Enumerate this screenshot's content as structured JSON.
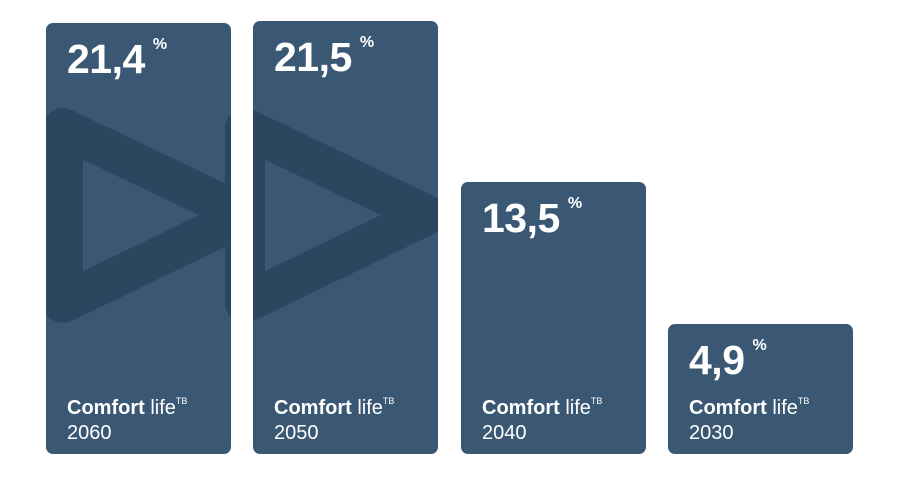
{
  "chart_data": {
    "type": "bar",
    "categories": [
      "2060",
      "2050",
      "2040",
      "2030"
    ],
    "values": [
      21.4,
      21.5,
      13.5,
      4.9
    ],
    "value_labels": [
      "21,4",
      "21,5",
      "13,5",
      "4,9"
    ],
    "unit": "%",
    "series_label_bold": "Comfort",
    "series_label_regular": "life",
    "series_label_superscript": "TB",
    "title": "",
    "xlabel": "",
    "ylabel": "",
    "grid": false,
    "colors": {
      "bar": "#3a5773",
      "watermark": "#2b4760",
      "text": "#ffffff"
    },
    "watermark_icon": "play-icon"
  }
}
